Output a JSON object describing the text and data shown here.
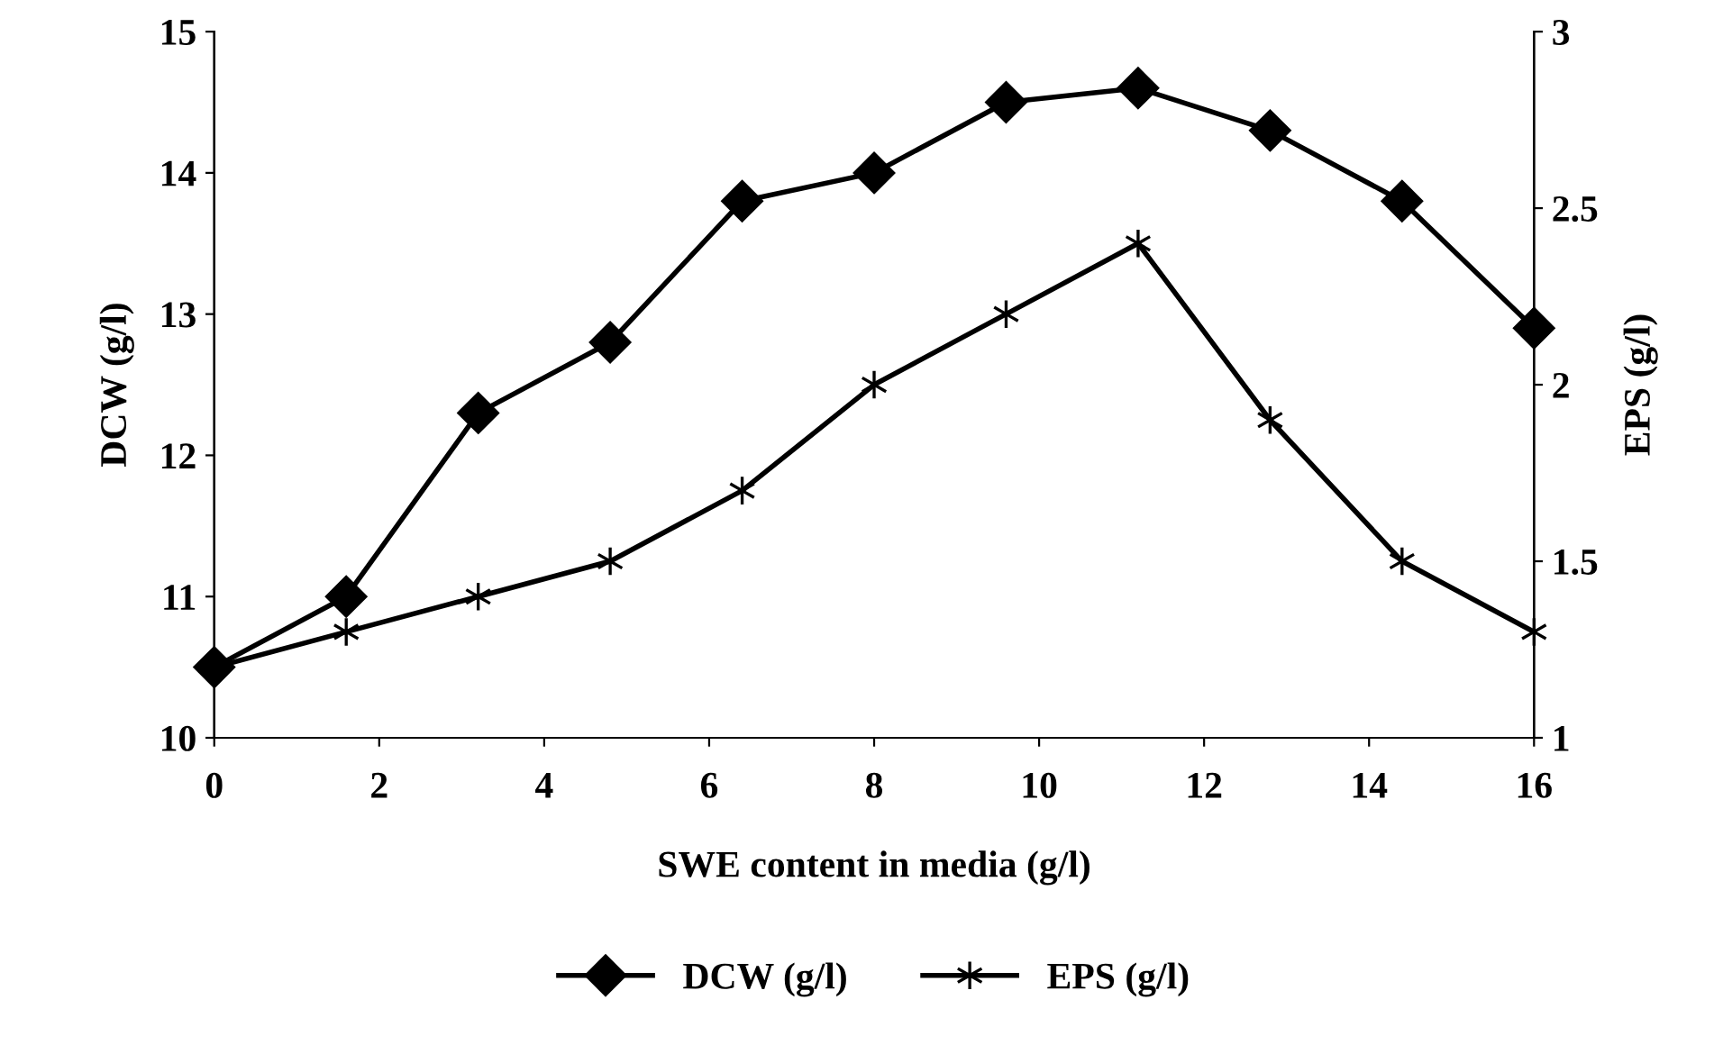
{
  "chart_data": {
    "type": "line",
    "xlabel": "SWE content in media (g/l)",
    "ylabel": "DCW (g/l)",
    "y2label": "EPS (g/l)",
    "x": [
      0,
      1.6,
      3.2,
      4.8,
      6.4,
      8,
      9.6,
      11.2,
      12.8,
      14.4,
      16
    ],
    "series": [
      {
        "name": "DCW (g/l)",
        "color": "#000000",
        "marker": "diamond",
        "values": [
          10.5,
          11.0,
          12.3,
          12.8,
          13.8,
          14.0,
          14.5,
          14.6,
          14.3,
          13.8,
          12.9
        ]
      },
      {
        "name": "EPS (g/l)",
        "color": "#000000",
        "marker": "cross",
        "axis": "y2",
        "values": [
          1.2,
          1.3,
          1.4,
          1.5,
          1.7,
          2.0,
          2.2,
          2.4,
          1.9,
          1.5,
          1.3
        ]
      }
    ],
    "xlim": [
      0,
      16
    ],
    "xticks": [
      0,
      2,
      4,
      6,
      8,
      10,
      12,
      14,
      16
    ],
    "ylim": [
      10,
      15
    ],
    "yticks": [
      10,
      11,
      12,
      13,
      14,
      15
    ],
    "y2lim": [
      1,
      3
    ],
    "y2ticks": [
      1,
      1.5,
      2,
      2.5,
      3
    ],
    "grid": false,
    "legend": "bottom",
    "line_style": "solid"
  }
}
